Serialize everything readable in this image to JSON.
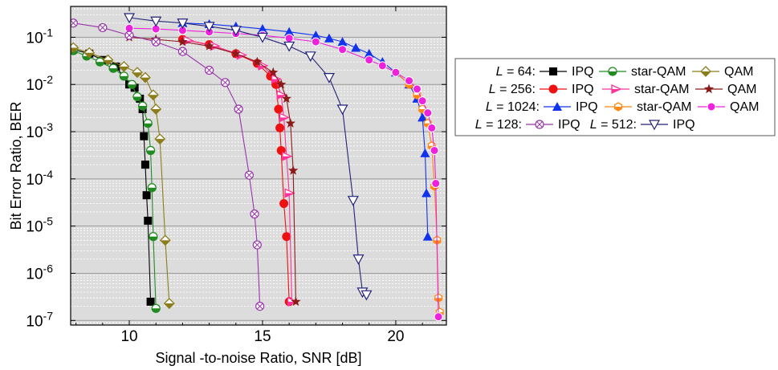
{
  "chart_data": {
    "type": "line",
    "xlabel": "Signal -to-noise Ratio, SNR [dB]",
    "ylabel": "Bit Error Ratio, BER",
    "xlim": [
      7.8,
      21.9
    ],
    "ylim": [
      8e-08,
      0.45
    ],
    "yscale": "log",
    "grid": true,
    "legend_position": "right",
    "x_ticks": [
      10,
      15,
      20
    ],
    "y_ticks": [
      {
        "value": 0.1,
        "base": "10",
        "exp": "-1"
      },
      {
        "value": 0.01,
        "base": "10",
        "exp": "-2"
      },
      {
        "value": 0.001,
        "base": "10",
        "exp": "-3"
      },
      {
        "value": 0.0001,
        "base": "10",
        "exp": "-4"
      },
      {
        "value": 1e-05,
        "base": "10",
        "exp": "-5"
      },
      {
        "value": 1e-06,
        "base": "10",
        "exp": "-6"
      },
      {
        "value": 1e-07,
        "base": "10",
        "exp": "-7"
      }
    ],
    "legend_rows": [
      {
        "prefix": "L",
        "value": " = 64:",
        "entries": [
          "IPQ",
          "star-QAM",
          "QAM"
        ]
      },
      {
        "prefix": "L",
        "value": " = 256:",
        "entries": [
          "IPQ",
          "star-QAM",
          "QAM"
        ]
      },
      {
        "prefix": "L",
        "value": " = 1024:",
        "entries": [
          "IPQ",
          "star-QAM",
          "QAM"
        ]
      },
      {
        "prefix": "L",
        "value": " = 128:",
        "entries": [
          "IPQ"
        ],
        "prefix2": "L",
        "value2": " = 512:",
        "entries2": [
          "IPQ"
        ]
      }
    ],
    "series": [
      {
        "group": "L = 64",
        "name": "IPQ",
        "color": "#000000",
        "marker": "square",
        "x": [
          7.9,
          8.5,
          9.0,
          9.5,
          10.0,
          10.2,
          10.4,
          10.5,
          10.55,
          10.6,
          10.65,
          10.7,
          10.8
        ],
        "y": [
          0.055,
          0.045,
          0.033,
          0.024,
          0.01,
          0.0085,
          0.005,
          0.003,
          0.0008,
          0.0002,
          4.5e-05,
          1.3e-05,
          2.5e-07
        ]
      },
      {
        "group": "L = 64",
        "name": "star-QAM",
        "color": "#228b22",
        "marker": "half-circle",
        "x": [
          7.9,
          8.4,
          8.9,
          9.4,
          9.8,
          10.1,
          10.3,
          10.5,
          10.7,
          10.8,
          10.85,
          10.9,
          11.0
        ],
        "y": [
          0.052,
          0.04,
          0.03,
          0.022,
          0.015,
          0.01,
          0.0055,
          0.0035,
          0.0015,
          0.0004,
          6.5e-05,
          6e-06,
          1.8e-07
        ]
      },
      {
        "group": "L = 64",
        "name": "QAM",
        "color": "#8b7d1a",
        "marker": "diamond",
        "x": [
          7.9,
          8.5,
          9.2,
          9.8,
          10.3,
          10.6,
          10.9,
          11.0,
          11.15,
          11.35,
          11.5
        ],
        "y": [
          0.06,
          0.047,
          0.033,
          0.024,
          0.018,
          0.014,
          0.006,
          0.003,
          0.0007,
          5e-06,
          2.3e-07
        ]
      },
      {
        "group": "L = 256",
        "name": "IPQ",
        "color": "#ee1111",
        "marker": "circle",
        "x": [
          12.0,
          13.0,
          14.0,
          14.8,
          15.3,
          15.5,
          15.6,
          15.65,
          15.7,
          15.8,
          15.9,
          16.0
        ],
        "y": [
          0.09,
          0.07,
          0.045,
          0.028,
          0.015,
          0.01,
          0.003,
          0.0012,
          0.0004,
          3e-05,
          6e-06,
          2.5e-07
        ]
      },
      {
        "group": "L = 256",
        "name": "star-QAM",
        "color": "#ff3399",
        "marker": "half-triangle",
        "x": [
          12.2,
          13.2,
          14.2,
          15.0,
          15.5,
          15.7,
          15.8,
          15.9,
          16.0,
          16.1
        ],
        "y": [
          0.085,
          0.065,
          0.042,
          0.025,
          0.013,
          0.006,
          0.002,
          0.0003,
          5e-05,
          2.5e-07
        ]
      },
      {
        "group": "L = 256",
        "name": "QAM",
        "color": "#8b1a1a",
        "marker": "star",
        "x": [
          10.0,
          11.0,
          12.0,
          13.0,
          14.0,
          14.8,
          15.4,
          15.7,
          15.9,
          16.05,
          16.15,
          16.25
        ],
        "y": [
          0.1,
          0.09,
          0.08,
          0.065,
          0.045,
          0.03,
          0.018,
          0.01,
          0.005,
          0.0015,
          0.00015,
          2.5e-07
        ]
      },
      {
        "group": "L = 1024",
        "name": "IPQ",
        "color": "#1133ee",
        "marker": "triangle",
        "x": [
          12.0,
          13.0,
          14.0,
          15.0,
          16.0,
          17.0,
          17.5,
          18.0,
          18.5,
          19.0,
          19.5,
          20.0,
          20.5,
          20.8,
          21.0,
          21.1,
          21.15,
          21.2
        ],
        "y": [
          0.2,
          0.19,
          0.17,
          0.15,
          0.13,
          0.11,
          0.095,
          0.08,
          0.06,
          0.045,
          0.03,
          0.018,
          0.01,
          0.005,
          0.002,
          0.00035,
          5e-05,
          6e-06
        ]
      },
      {
        "group": "L = 1024",
        "name": "star-QAM",
        "color": "#ff8811",
        "marker": "hexagon",
        "x": [
          19.5,
          20.0,
          20.5,
          20.8,
          21.0,
          21.2,
          21.35,
          21.45,
          21.55,
          21.6,
          21.65
        ],
        "y": [
          0.025,
          0.018,
          0.01,
          0.006,
          0.003,
          0.0015,
          0.0005,
          7e-05,
          5e-06,
          3e-07,
          1.5e-07
        ]
      },
      {
        "group": "L = 1024",
        "name": "QAM",
        "color": "#ee22dd",
        "marker": "ball",
        "x": [
          10.0,
          11.0,
          12.0,
          13.0,
          14.0,
          15.0,
          16.0,
          17.0,
          18.0,
          19.0,
          19.5,
          20.0,
          20.5,
          20.8,
          21.0,
          21.2,
          21.35,
          21.45,
          21.5,
          21.6
        ],
        "y": [
          0.155,
          0.15,
          0.14,
          0.13,
          0.12,
          0.11,
          0.095,
          0.08,
          0.055,
          0.033,
          0.025,
          0.018,
          0.012,
          0.008,
          0.0045,
          0.0025,
          0.0012,
          0.0004,
          8e-05,
          1.2e-07
        ]
      },
      {
        "group": "L = 128",
        "name": "IPQ",
        "color": "#9933aa",
        "marker": "crossed-circle",
        "x": [
          7.9,
          9.0,
          10.0,
          11.0,
          12.0,
          13.0,
          13.6,
          14.1,
          14.5,
          14.7,
          14.8,
          14.9
        ],
        "y": [
          0.2,
          0.16,
          0.11,
          0.08,
          0.05,
          0.02,
          0.011,
          0.003,
          0.00012,
          1.8e-05,
          4e-06,
          2e-07
        ]
      },
      {
        "group": "L = 512",
        "name": "IPQ",
        "color": "#222277",
        "marker": "triangle-down",
        "x": [
          10.0,
          11.0,
          12.0,
          13.0,
          14.0,
          15.0,
          16.0,
          16.8,
          17.5,
          18.0,
          18.4,
          18.6,
          18.75,
          18.9
        ],
        "y": [
          0.26,
          0.22,
          0.2,
          0.17,
          0.14,
          0.1,
          0.065,
          0.04,
          0.014,
          0.003,
          3.5e-05,
          2e-06,
          4e-07,
          3.5e-07
        ]
      }
    ]
  }
}
